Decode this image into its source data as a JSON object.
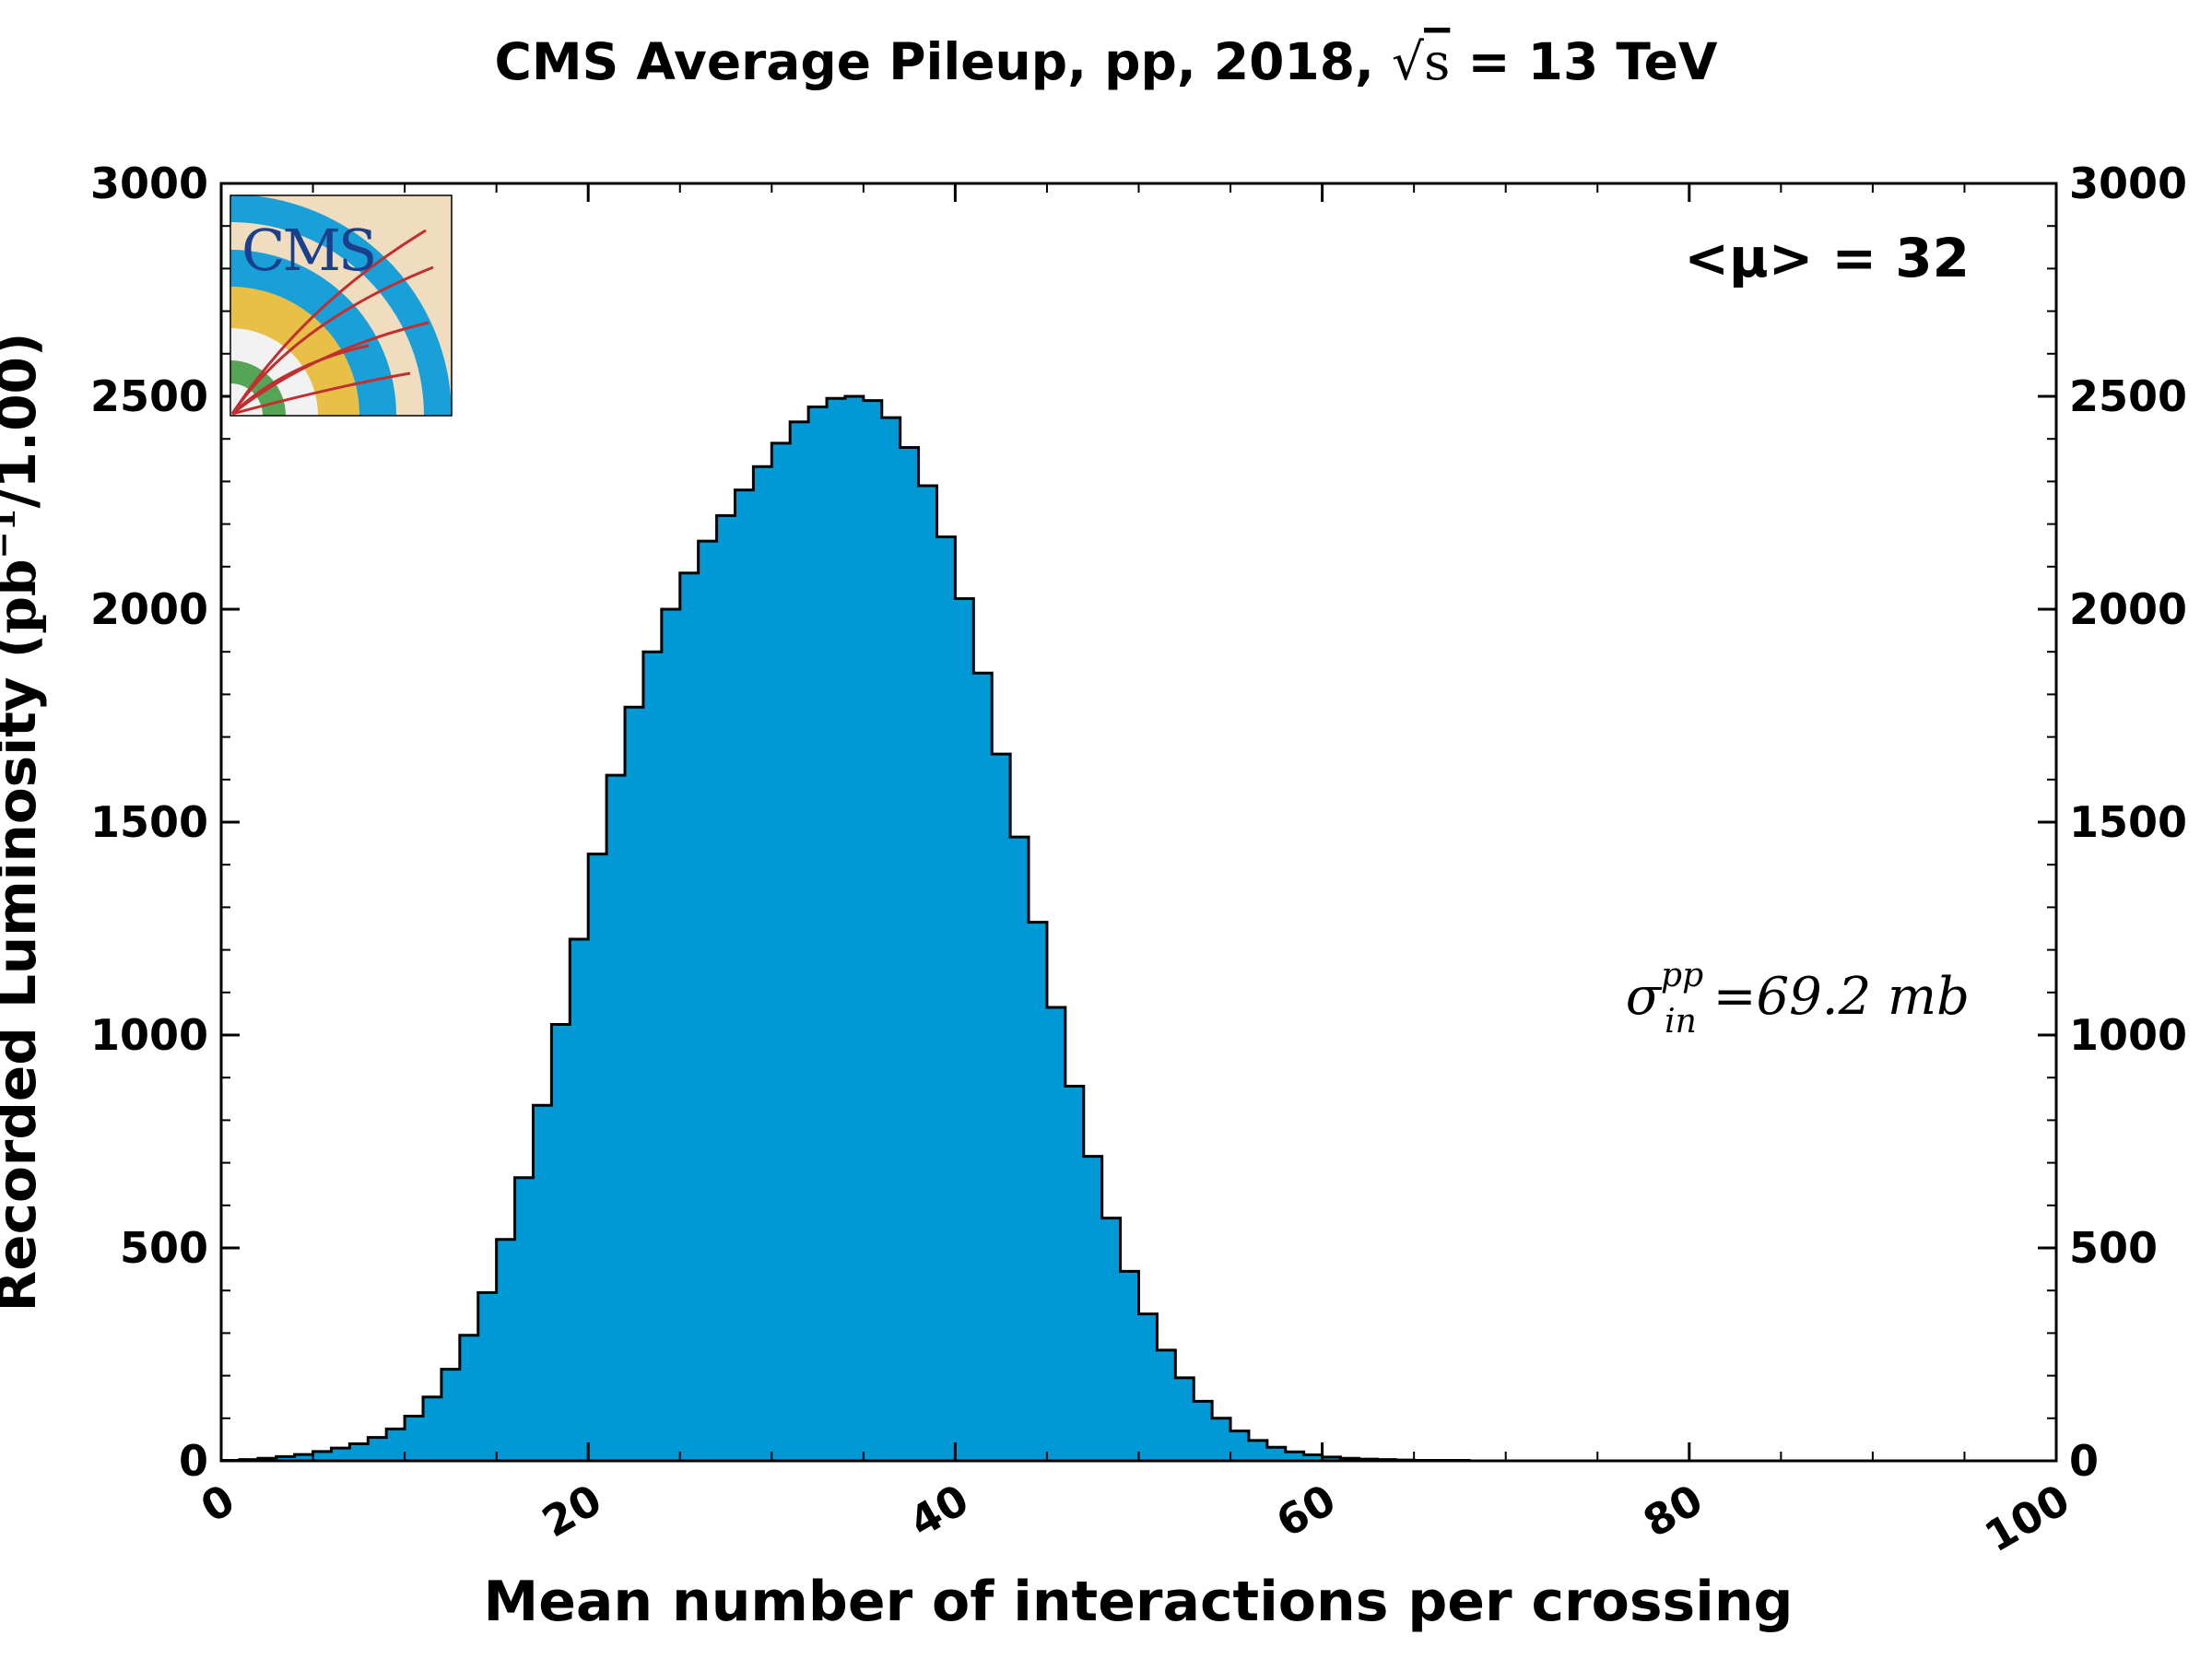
{
  "chart_data": {
    "type": "bar",
    "title_prefix": "CMS Average Pileup, pp, 2018, ",
    "title_sqrt_symbol": "√",
    "title_sqrt_var": "s",
    "title_suffix": " = 13 TeV",
    "xlabel": "Mean number of interactions per crossing",
    "ylabel_prefix": "Recorded Luminosity (",
    "ylabel_unit_base": "pb",
    "ylabel_unit_sup": "−1",
    "ylabel_suffix": "/1.00)",
    "xlim": [
      0,
      100
    ],
    "ylim": [
      0,
      3000
    ],
    "x_ticks": [
      "0",
      "20",
      "40",
      "60",
      "80",
      "100"
    ],
    "y_ticks": [
      "0",
      "500",
      "1000",
      "1500",
      "2000",
      "2500",
      "3000"
    ],
    "bin_width": 1,
    "bin_start": 0,
    "values": [
      1,
      3,
      6,
      10,
      15,
      22,
      30,
      40,
      55,
      75,
      105,
      150,
      215,
      295,
      395,
      520,
      665,
      835,
      1025,
      1225,
      1425,
      1610,
      1770,
      1900,
      2000,
      2085,
      2160,
      2220,
      2280,
      2335,
      2390,
      2440,
      2475,
      2495,
      2500,
      2490,
      2450,
      2380,
      2290,
      2170,
      2025,
      1850,
      1660,
      1465,
      1265,
      1065,
      880,
      715,
      570,
      445,
      345,
      260,
      195,
      140,
      100,
      70,
      48,
      32,
      21,
      14,
      9,
      6,
      4,
      3,
      2,
      1,
      1,
      1,
      0,
      0,
      0,
      0,
      0,
      0,
      0,
      0,
      0,
      0,
      0,
      0,
      0,
      0,
      0,
      0,
      0,
      0,
      0,
      0,
      0,
      0,
      0,
      0,
      0,
      0,
      0,
      0,
      0,
      0,
      0,
      0
    ],
    "fill_color": "#0099d6",
    "edge_color": "#000000",
    "annotation_mean_text": "<μ> = 32",
    "annotation_sigma": "σ",
    "annotation_sigma_sub": "in",
    "annotation_sigma_sup": "pp",
    "annotation_sigma_value": " =69.2 mb",
    "logo_text": "CMS"
  }
}
